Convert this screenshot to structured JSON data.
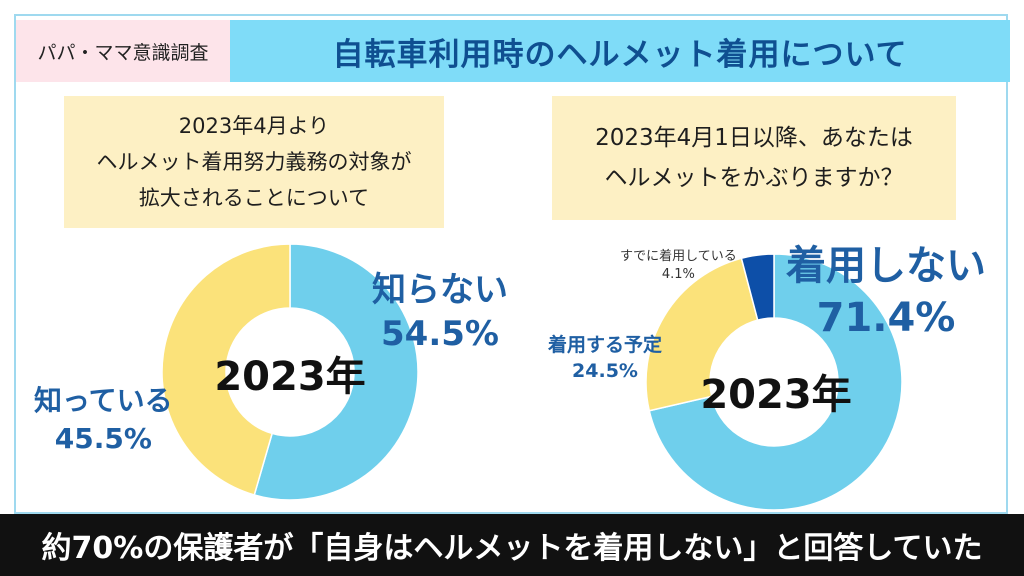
{
  "header": {
    "tag": "パパ・ママ意識調査",
    "title": "自転車利用時のヘルメット着用について"
  },
  "questions": {
    "q1": [
      "2023年4月より",
      "ヘルメット着用努力義務の対象が",
      "拡大されることについて"
    ],
    "q2": [
      "2023年4月1日以降、あなたは",
      "ヘルメットをかぶりますか？"
    ]
  },
  "chart_data": [
    {
      "type": "pie",
      "title": "",
      "center_label": "2023年",
      "slices": [
        {
          "label": "知らない",
          "value": 54.5,
          "value_label": "54.5%",
          "color": "#6fcfec"
        },
        {
          "label": "知っている",
          "value": 45.5,
          "value_label": "45.5%",
          "color": "#fbe27a"
        }
      ]
    },
    {
      "type": "pie",
      "title": "",
      "center_label": "2023年",
      "slices": [
        {
          "label": "着用しない",
          "value": 71.4,
          "value_label": "71.4%",
          "color": "#6fcfec"
        },
        {
          "label": "着用する予定",
          "value": 24.5,
          "value_label": "24.5%",
          "color": "#fbe27a"
        },
        {
          "label": "すでに着用している",
          "value": 4.1,
          "value_label": "4.1%",
          "color": "#0d4fa8"
        }
      ]
    }
  ],
  "footer": {
    "summary": "約70%の保護者が「自身はヘルメットを着用しない」と回答していた"
  }
}
